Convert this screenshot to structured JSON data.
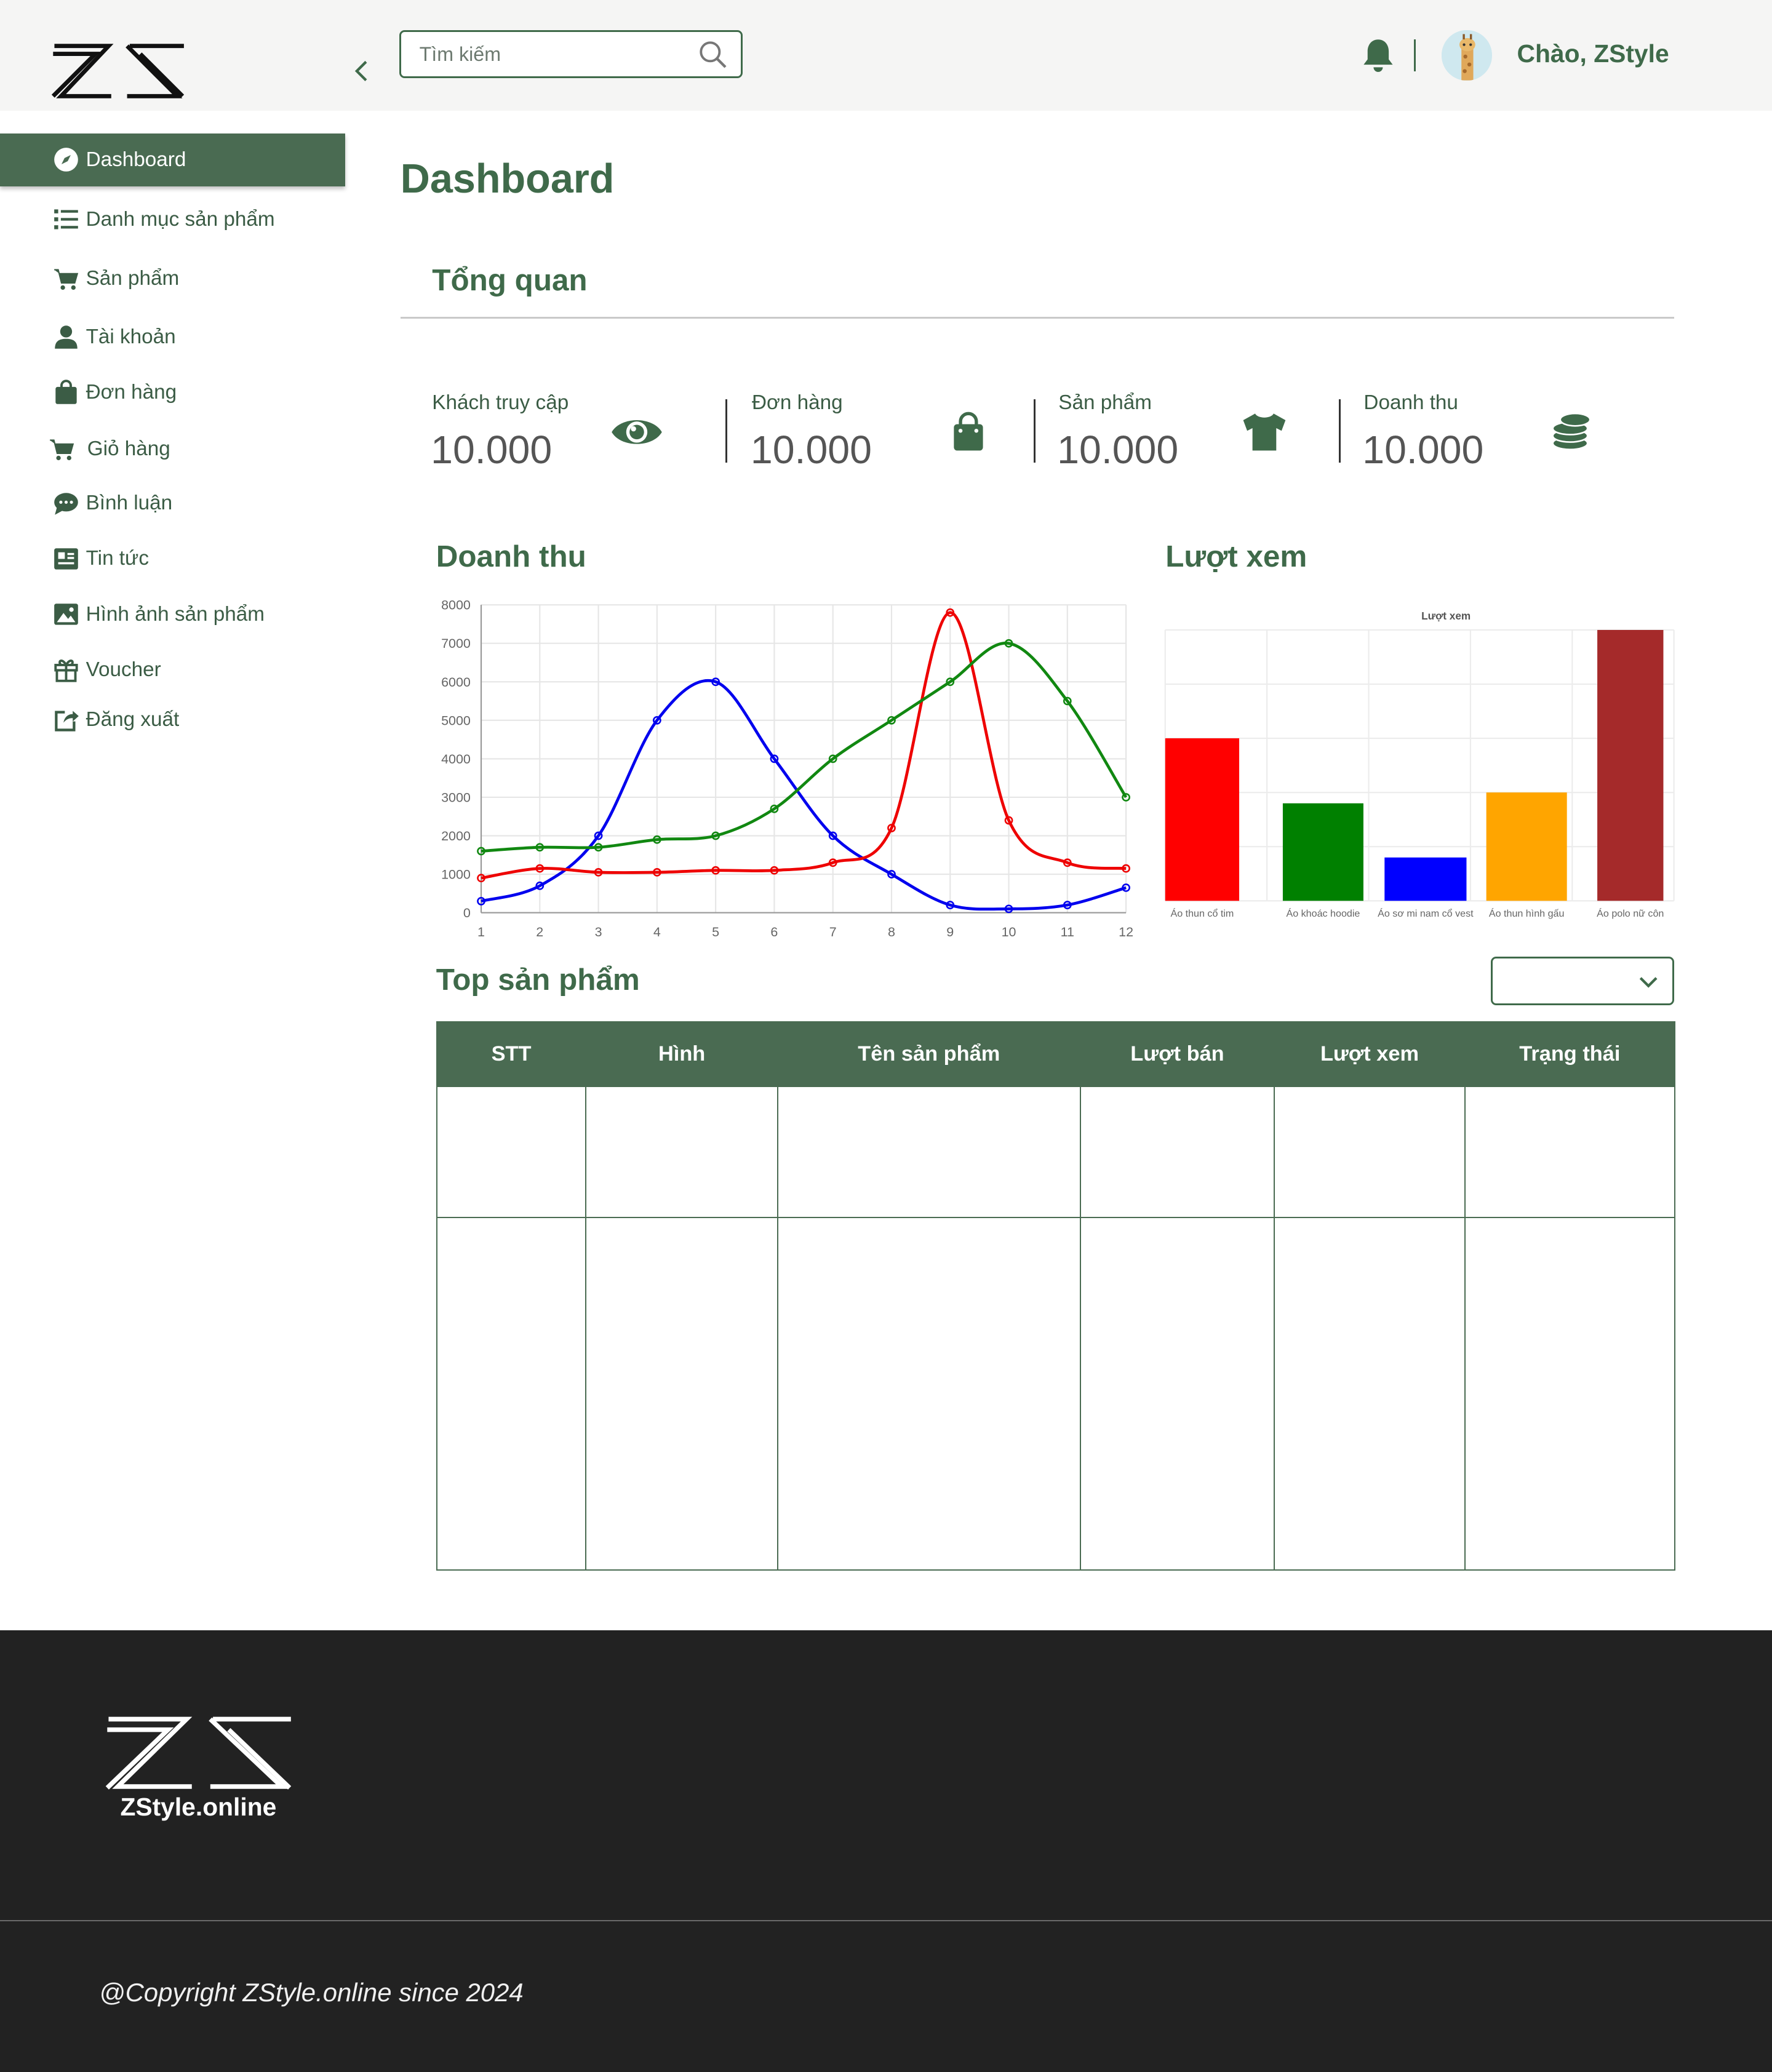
{
  "header": {
    "search_placeholder": "Tìm kiếm",
    "greeting": "Chào, ZStyle"
  },
  "sidebar": {
    "items": [
      {
        "label": "Dashboard",
        "icon": "compass-icon",
        "active": true
      },
      {
        "label": "Danh mục sản phẩm",
        "icon": "list-icon"
      },
      {
        "label": "Sản phẩm",
        "icon": "cart-icon"
      },
      {
        "label": "Tài khoản",
        "icon": "user-icon"
      },
      {
        "label": "Đơn hàng",
        "icon": "bag-icon"
      },
      {
        "label": "Giỏ hàng",
        "icon": "cart-icon"
      },
      {
        "label": "Bình luận",
        "icon": "chat-icon"
      },
      {
        "label": "Tin tức",
        "icon": "newspaper-icon"
      },
      {
        "label": "Hình ảnh sản phẩm",
        "icon": "image-icon"
      },
      {
        "label": "Voucher",
        "icon": "gift-icon"
      },
      {
        "label": "Đăng xuất",
        "icon": "logout-icon"
      }
    ]
  },
  "main": {
    "title": "Dashboard",
    "overview_title": "Tổng quan",
    "stats": [
      {
        "label": "Khách truy cập",
        "value": "10.000",
        "icon": "eye-icon"
      },
      {
        "label": "Đơn hàng",
        "value": "10.000",
        "icon": "bag-icon"
      },
      {
        "label": "Sản phẩm",
        "value": "10.000",
        "icon": "shirt-icon"
      },
      {
        "label": "Doanh thu",
        "value": "10.000",
        "icon": "coins-icon"
      }
    ],
    "revenue_title": "Doanh thu",
    "views_title": "Lượt xem",
    "top_title": "Top sản phẩm",
    "table_headers": [
      "STT",
      "Hình",
      "Tên sản phẩm",
      "Lượt bán",
      "Lượt xem",
      "Trạng thái"
    ]
  },
  "footer": {
    "site": "ZStyle.online",
    "copyright": "@Copyright ZStyle.online since 2024"
  },
  "chart_data": [
    {
      "type": "line",
      "x": [
        1,
        2,
        3,
        4,
        5,
        6,
        7,
        8,
        9,
        10,
        11,
        12
      ],
      "ylim": [
        0,
        8000
      ],
      "yticks": [
        0,
        1000,
        2000,
        3000,
        4000,
        5000,
        6000,
        7000,
        8000
      ],
      "grid": true,
      "series": [
        {
          "color": "#0000ee",
          "values": [
            300,
            700,
            2000,
            5000,
            6000,
            4000,
            2000,
            1000,
            200,
            100,
            200,
            650
          ]
        },
        {
          "color": "#ee0000",
          "values": [
            900,
            1150,
            1050,
            1050,
            1100,
            1100,
            1300,
            2200,
            7800,
            2400,
            1300,
            1150
          ]
        },
        {
          "color": "#118811",
          "values": [
            1600,
            1700,
            1700,
            1900,
            2000,
            2700,
            4000,
            5000,
            6000,
            7000,
            5500,
            3000
          ]
        }
      ]
    },
    {
      "type": "bar",
      "title": "Lượt xem",
      "categories": [
        "Áo thun cổ tim",
        "Áo khoác hoodie",
        "Áo sơ mi nam cổ vest",
        "Áo thun hình gấu",
        "Áo polo nữ côn"
      ],
      "values": [
        60,
        36,
        16,
        40,
        100
      ],
      "colors": [
        "#ff0000",
        "#008000",
        "#0000ff",
        "#ffa500",
        "#a52a2a"
      ],
      "grid": true
    }
  ]
}
